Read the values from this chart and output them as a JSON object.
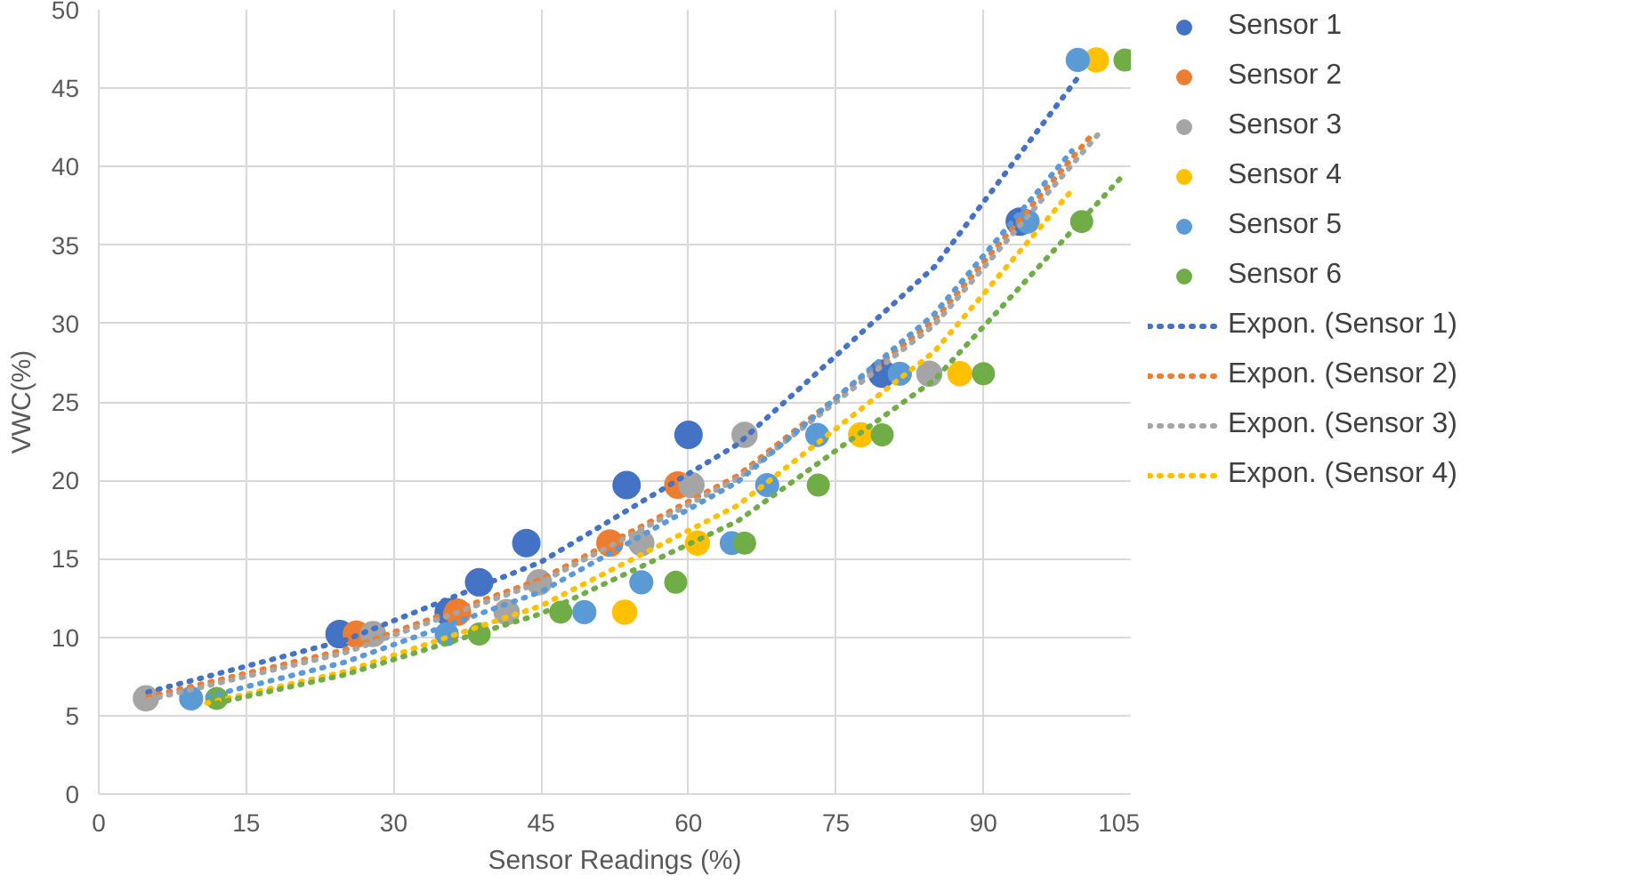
{
  "chart_data": {
    "type": "scatter",
    "xlabel": "Sensor Readings (%)",
    "ylabel": "VWC(%)",
    "xlim": [
      0,
      105
    ],
    "xticks": [
      0,
      15,
      30,
      45,
      60,
      75,
      90,
      105
    ],
    "ylim": [
      0,
      50
    ],
    "yticks": [
      0,
      5,
      10,
      15,
      20,
      25,
      30,
      35,
      40,
      45,
      50
    ],
    "grid": true,
    "legend": "right",
    "marker": "circle",
    "series": [
      {
        "name": "Sensor 1",
        "color": "#4472c4",
        "x": [
          24.5,
          35.6,
          38.7,
          43.5,
          53.7,
          60,
          79.7,
          93.7
        ],
        "values": [
          10.2,
          11.6,
          13.5,
          16,
          19.7,
          22.9,
          26.8,
          36.5
        ]
      },
      {
        "name": "Sensor 2",
        "color": "#ed7d31",
        "x": [
          26.2,
          36.5,
          52,
          58.9
        ],
        "values": [
          10.2,
          11.6,
          16,
          19.7
        ]
      },
      {
        "name": "Sensor 3",
        "color": "#a5a5a5",
        "x": [
          4.8,
          27.9,
          41.5,
          44.8,
          55.2,
          60.3,
          65.7,
          84.5
        ],
        "values": [
          6.1,
          10.2,
          11.6,
          13.5,
          16,
          19.7,
          22.9,
          26.8
        ]
      },
      {
        "name": "Sensor 4",
        "color": "#ffc000",
        "x": [
          53.5,
          60.9,
          77.5,
          87.6,
          101.5
        ],
        "values": [
          11.6,
          16,
          22.9,
          26.8,
          46.8
        ]
      },
      {
        "name": "Sensor 5",
        "color": "#5b9bd5",
        "x": [
          9.4,
          35.4,
          49.4,
          55.2,
          64.4,
          68,
          73.1,
          81.5,
          94.5,
          99.6
        ],
        "values": [
          6.1,
          10.2,
          11.6,
          13.5,
          16,
          19.7,
          22.9,
          26.8,
          36.5,
          46.8
        ]
      },
      {
        "name": "Sensor 6",
        "color": "#70ad47",
        "x": [
          12,
          38.7,
          47,
          58.7,
          65.7,
          73.2,
          79.7,
          90,
          100,
          104.4
        ],
        "values": [
          6.1,
          10.2,
          11.6,
          13.5,
          16,
          19.7,
          22.9,
          26.8,
          36.5,
          46.8
        ]
      },
      {
        "type": "line",
        "marker": "none",
        "line_style": "dotted",
        "name": "Expon. (Sensor 1)",
        "color": "#4472c4",
        "x": [
          5,
          25,
          45,
          65,
          85,
          100
        ],
        "values": [
          6.5,
          9.8,
          14.8,
          22.3,
          33.6,
          46
        ]
      },
      {
        "type": "line",
        "marker": "none",
        "line_style": "dotted",
        "name": "Expon. (Sensor 2)",
        "color": "#ed7d31",
        "x": [
          5,
          25,
          45,
          65,
          85,
          101
        ],
        "values": [
          6.2,
          9.2,
          13.7,
          20.3,
          30.2,
          42
        ]
      },
      {
        "type": "line",
        "marker": "none",
        "line_style": "dotted",
        "name": "Expon. (Sensor 3)",
        "color": "#a5a5a5",
        "x": [
          5,
          25,
          45,
          65,
          85,
          102
        ],
        "values": [
          6,
          9,
          13.5,
          20.1,
          29.9,
          42.3
        ]
      },
      {
        "type": "line",
        "marker": "none",
        "line_style": "dotted",
        "name": "Expon. (Sensor 4)",
        "color": "#ffc000",
        "x": [
          11,
          25,
          45,
          65,
          85,
          99
        ],
        "values": [
          5.8,
          7.8,
          12,
          18.4,
          28.2,
          38.5
        ]
      },
      {
        "type": "line",
        "marker": "none",
        "line_style": "dotted",
        "color": "#5b9bd5",
        "x": [
          9,
          25,
          45,
          65,
          85,
          99
        ],
        "values": [
          5.9,
          8.4,
          12.9,
          19.9,
          30.6,
          41
        ]
      },
      {
        "type": "line",
        "marker": "none",
        "line_style": "dotted",
        "color": "#70ad47",
        "x": [
          12,
          25,
          45,
          65,
          85,
          104
        ],
        "values": [
          5.8,
          7.6,
          11.5,
          17.4,
          26.4,
          39.3
        ]
      }
    ]
  }
}
